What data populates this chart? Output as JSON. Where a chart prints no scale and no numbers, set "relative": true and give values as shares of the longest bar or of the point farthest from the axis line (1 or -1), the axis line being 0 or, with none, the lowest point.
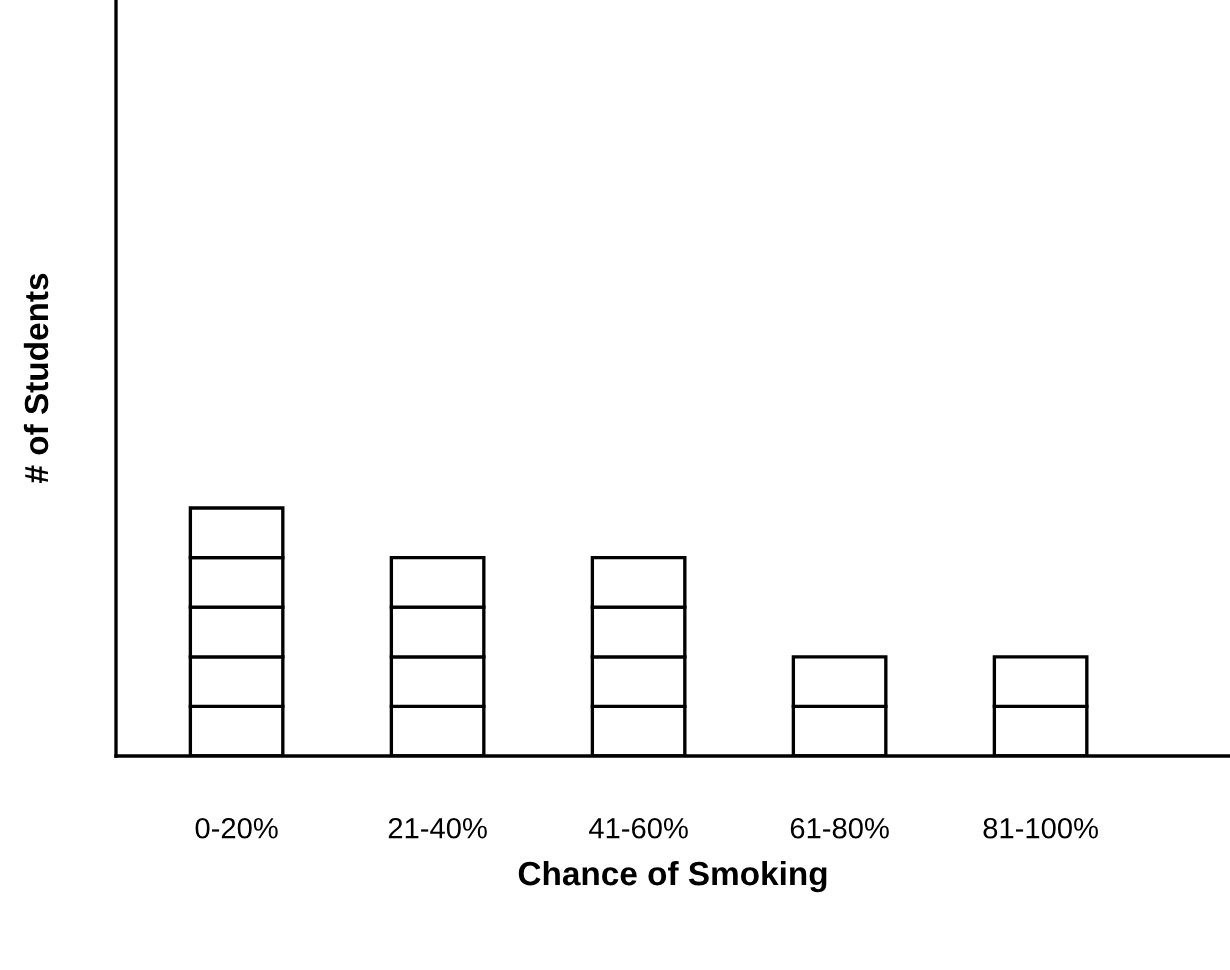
{
  "chart_data": {
    "type": "bar",
    "stacked": true,
    "relative": true,
    "xlabel": "Chance of Smoking",
    "ylabel": "# of Students",
    "categories": [
      "0-20%",
      "21-40%",
      "41-60%",
      "61-80%",
      "81-100%"
    ],
    "series": [
      {
        "color": "#ffffff",
        "values": [
          0.2,
          0.2,
          0.2,
          0.2,
          0.2
        ]
      },
      {
        "color": "#ffffff",
        "values": [
          0.2,
          0.2,
          0.2,
          0.2,
          0.2
        ]
      },
      {
        "color": "#ffffff",
        "values": [
          0.2,
          0.2,
          0.2,
          null,
          null
        ]
      },
      {
        "color": "#ffffff",
        "values": [
          0.2,
          0.2,
          0.2,
          null,
          null
        ]
      },
      {
        "color": "#ffffff",
        "values": [
          0.2,
          null,
          null,
          null,
          null
        ]
      }
    ],
    "grid": false,
    "legend": false
  }
}
